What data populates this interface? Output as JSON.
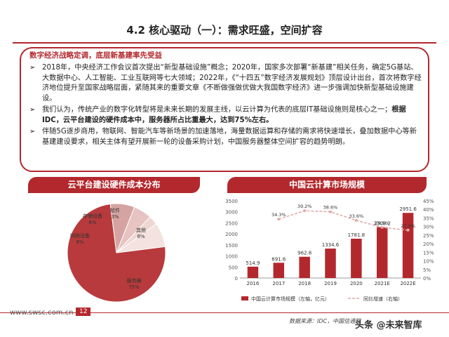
{
  "page": {
    "title": "4.2 核心驱动（一）：需求旺盛，空间扩容",
    "box_heading": "数字经济战略定调，底层新基建率先受益",
    "bullets": [
      {
        "mark": "➢",
        "text": "2018年，中央经济工作会议首次提出“新型基础设施”概念；2020年，国家多次部署“新基建”相关任务，确定5G基站、大数据中心、人工智能、工业互联网等七大领域；2022年，《“十四五”数字经济发展规划》顶层设计出台，首次将数字经济地位提升至国家战略层面，紧随其来的重要文章《不断做强做优做大我国数字经济》进一步强调加快新型基础设施建设。"
      },
      {
        "mark": "➢",
        "text": "我们认为，传统产业的数字化转型将是未来长期的发展主线，以云计算为代表的底层IT基础设施则是核心之一；",
        "bold": "根据IDC，云平台建设的硬件成本中，服务器所占比重最大，达到75%左右。"
      },
      {
        "mark": "➢",
        "text": "伴随5G逐步商用，物联网、智能汽车等新场景的加速落地，海量数据运算和存储的需求将快速增长，叠加数据中心等新基建建设要求，相关主体有望开展新一轮的设备采购计划，中国服务器整体空间扩容的趋势明朗。"
      }
    ],
    "footer_url": "www.swsc.com.cn",
    "footer_page": "12",
    "footer_source": "数据来源：IDC，中国信通院",
    "watermark": "头条 @未来智库"
  },
  "chart_data": [
    {
      "type": "pie",
      "title": "云平台建设硬件成本分布",
      "labels": [
        "服务器",
        "网络设备",
        "存储设备",
        "软件",
        "其他"
      ],
      "values": [
        75,
        8,
        6,
        3,
        8
      ],
      "value_labels": [
        "75%",
        "8%",
        "6%",
        "3%",
        "8%"
      ],
      "colors": [
        "#b83a3c",
        "#d5a4a2",
        "#e7c4c1",
        "#eed6d2",
        "#f3e2df"
      ]
    },
    {
      "type": "bar",
      "title": "中国云计算市场规模",
      "categories": [
        "2016",
        "2017",
        "2018",
        "2019",
        "2020",
        "2021E",
        "2022E"
      ],
      "series": [
        {
          "name": "中国云计算市场规模（左轴，亿元）",
          "type": "bar",
          "values": [
            514.9,
            691.6,
            962.8,
            1334.6,
            1781.8,
            2308.2,
            2951.6
          ],
          "color": "#b3282d"
        },
        {
          "name": "同比增速（右轴）",
          "type": "line",
          "values": [
            null,
            34.3,
            39.2,
            38.6,
            33.6,
            29.5,
            27.9
          ],
          "labels": [
            "",
            "34.3%",
            "39.2%",
            "38.6%",
            "33.6%",
            "29.5%",
            "27.9%"
          ],
          "color": "#e3a9a8"
        }
      ],
      "ylim": [
        0,
        3500
      ],
      "yticks": [
        "0",
        "500",
        "1000",
        "1500",
        "2000",
        "2500",
        "3000",
        "3500"
      ],
      "ylim_right": [
        0,
        45
      ],
      "yticks_right": [
        "0%",
        "5%",
        "10%",
        "15%",
        "20%",
        "25%",
        "30%",
        "35%",
        "40%",
        "45%"
      ],
      "grid": false,
      "legend": "bottom"
    }
  ]
}
